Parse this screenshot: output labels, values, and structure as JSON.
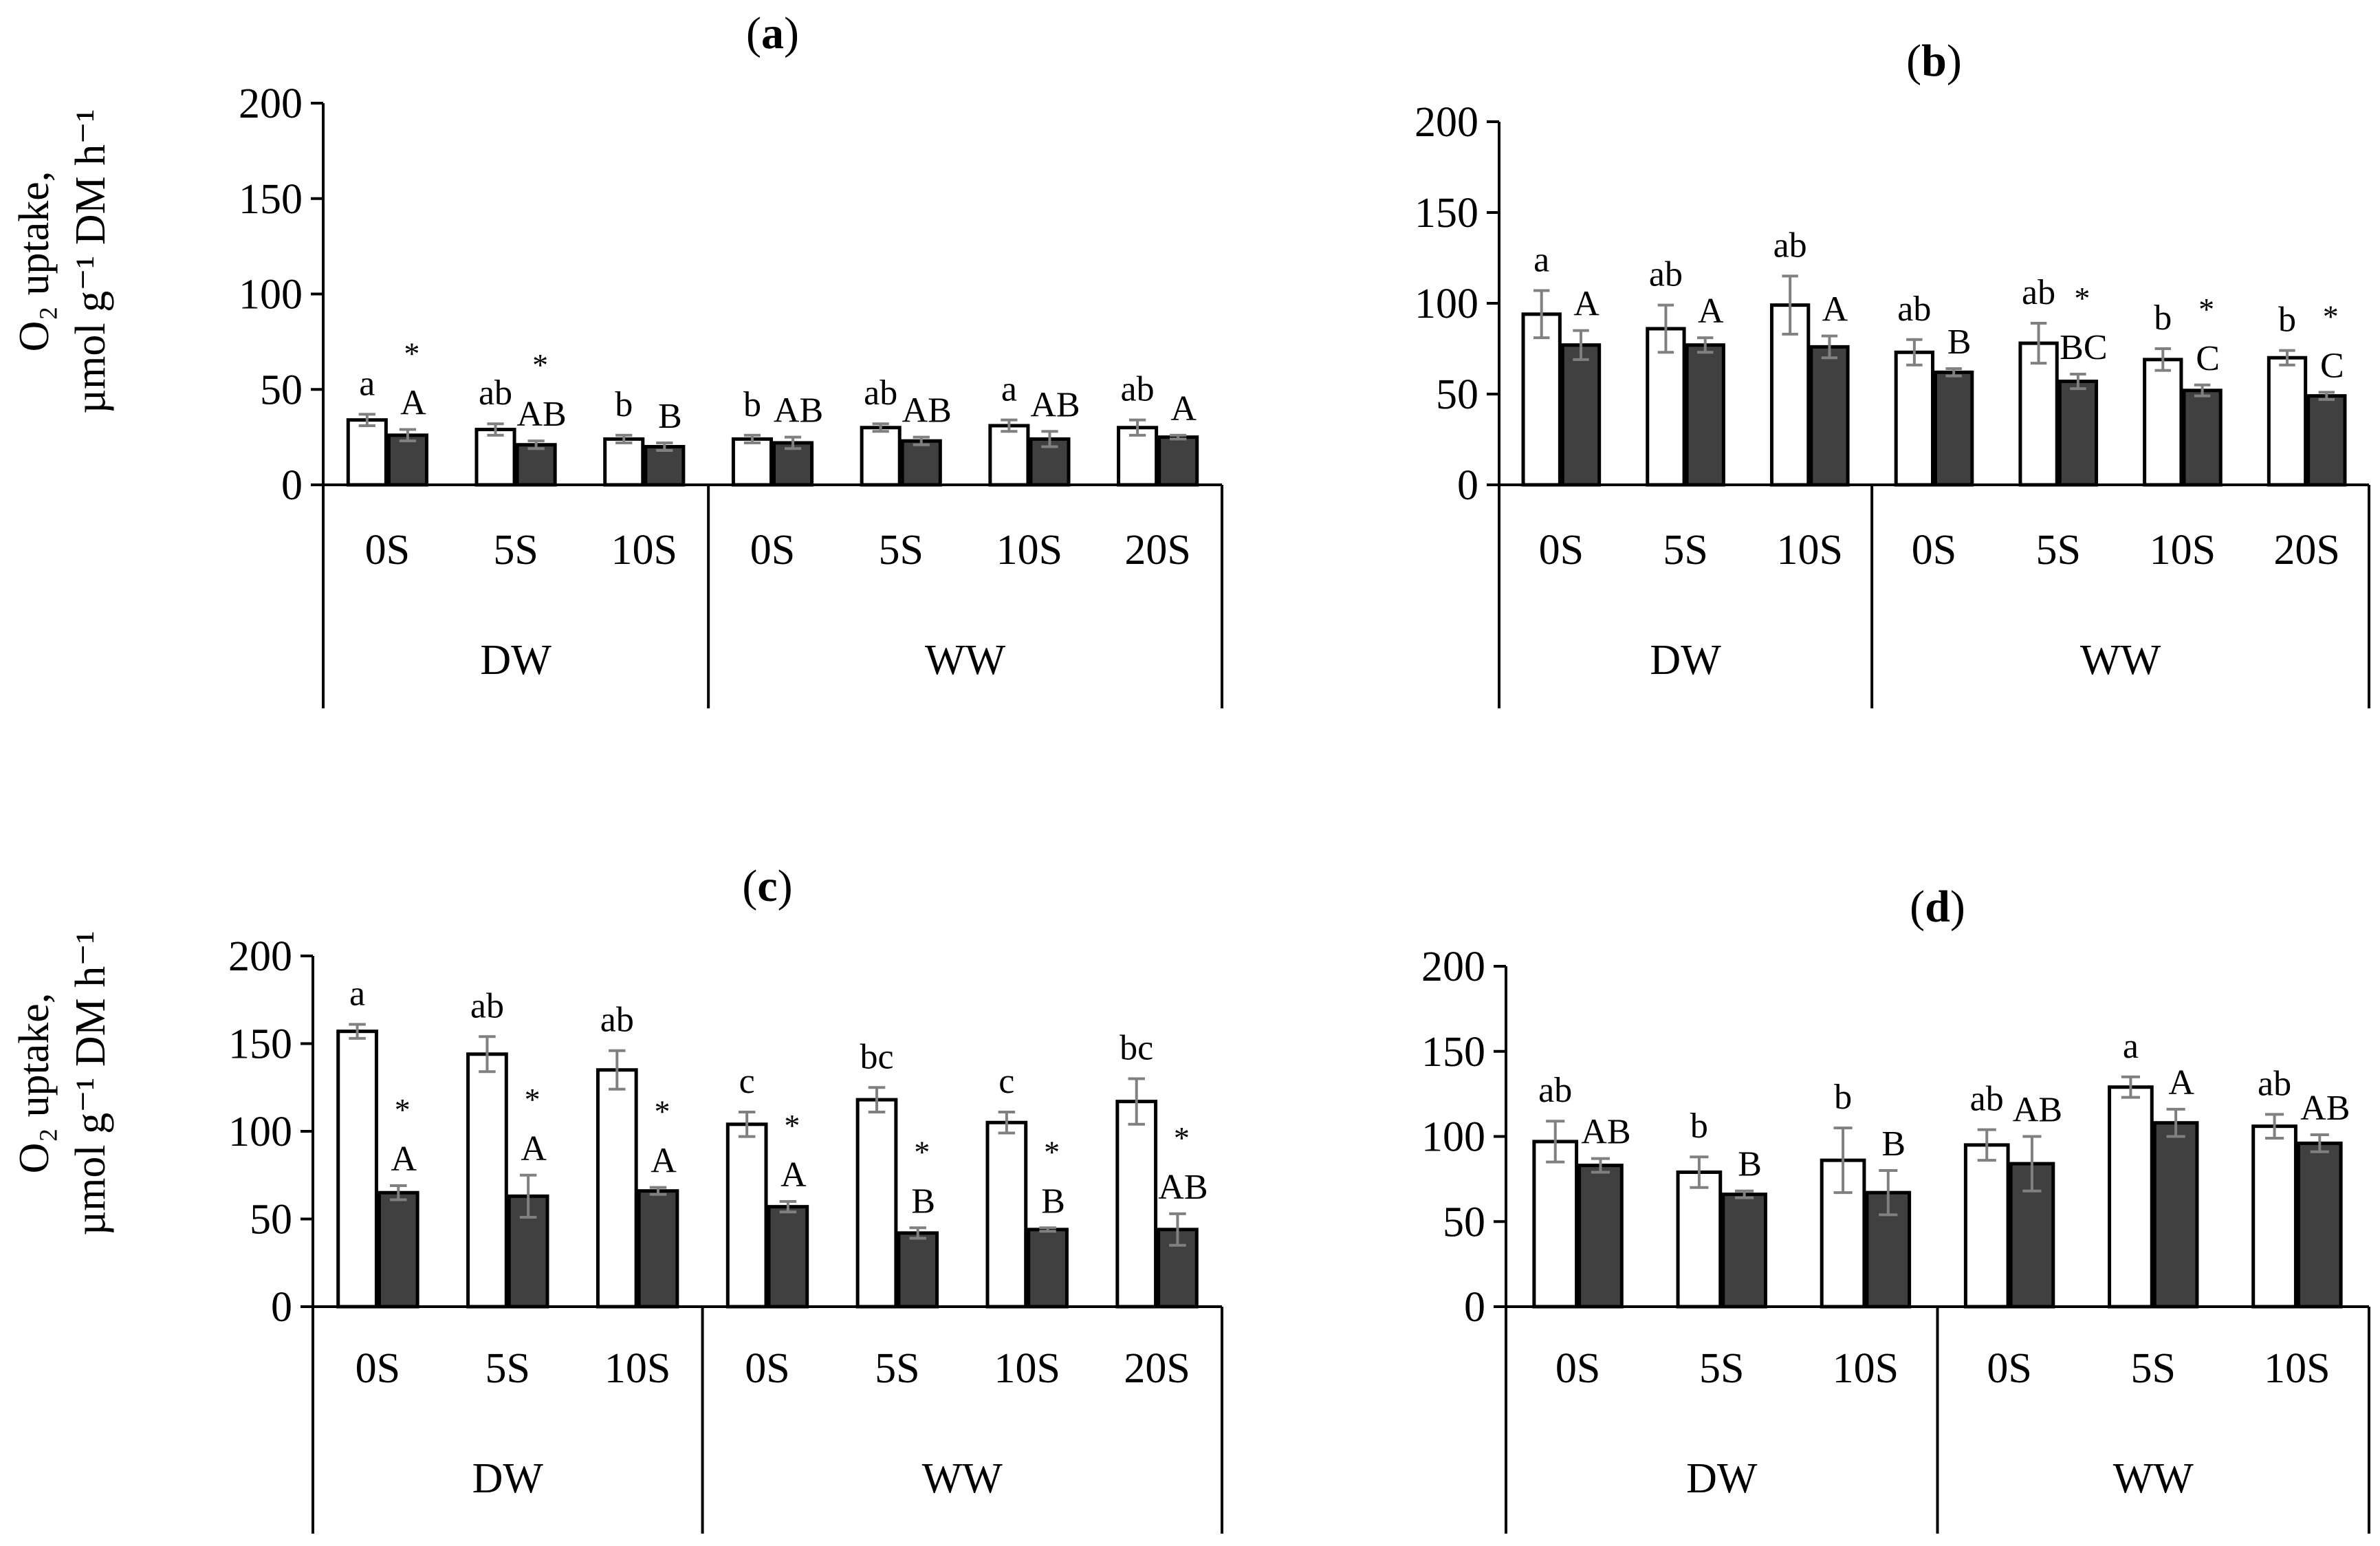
{
  "ylabel_line1": "O₂ uptake,",
  "ylabel_line2": "µmol g⁻¹ DM h⁻¹",
  "colors": {
    "open": "#ffffff",
    "filled": "#404040",
    "error": "#808080",
    "axis": "#000000"
  },
  "chart_data": [
    {
      "type": "bar",
      "panel": "(a)",
      "title": "(a)",
      "ylim": [
        0,
        200
      ],
      "yticks": [
        "0",
        "50",
        "100",
        "150",
        "200"
      ],
      "categories": [
        "0S",
        "5S",
        "10S",
        "0S",
        "5S",
        "10S",
        "20S"
      ],
      "groups": [
        {
          "label": "DW",
          "count": 3
        },
        {
          "label": "WW",
          "count": 4
        }
      ],
      "series": [
        {
          "style": "open",
          "values": [
            34,
            29,
            24,
            24,
            30,
            31,
            30
          ],
          "errors": [
            3,
            3,
            2,
            2,
            2,
            3,
            4
          ],
          "labels": [
            "a",
            "ab",
            "b",
            "b",
            "ab",
            "a",
            "ab"
          ]
        },
        {
          "style": "filled",
          "values": [
            26,
            21,
            20,
            22,
            23,
            24,
            25
          ],
          "errors": [
            3,
            2,
            2,
            3,
            2,
            4,
            1
          ],
          "labels": [
            "A",
            "AB",
            "B",
            "AB",
            "AB",
            "AB",
            "A"
          ]
        }
      ],
      "stars": [
        "*",
        "*",
        "",
        "",
        "",
        "",
        ""
      ]
    },
    {
      "type": "bar",
      "panel": "(b)",
      "title": "(b)",
      "ylim": [
        0,
        200
      ],
      "yticks": [
        "0",
        "50",
        "100",
        "150",
        "200"
      ],
      "categories": [
        "0S",
        "5S",
        "10S",
        "0S",
        "5S",
        "10S",
        "20S"
      ],
      "groups": [
        {
          "label": "DW",
          "count": 3
        },
        {
          "label": "WW",
          "count": 4
        }
      ],
      "series": [
        {
          "style": "open",
          "values": [
            94,
            86,
            99,
            73,
            78,
            69,
            70
          ],
          "errors": [
            13,
            13,
            16,
            7,
            11,
            6,
            4
          ],
          "labels": [
            "a",
            "ab",
            "ab",
            "ab",
            "ab",
            "b",
            "b"
          ]
        },
        {
          "style": "filled",
          "values": [
            77,
            77,
            76,
            62,
            57,
            52,
            49
          ],
          "errors": [
            8,
            4,
            6,
            2,
            4,
            3,
            2
          ],
          "labels": [
            "A",
            "A",
            "A",
            "B",
            "BC",
            "C",
            "C"
          ]
        }
      ],
      "stars": [
        "",
        "",
        "",
        "",
        "*",
        "*",
        "*"
      ]
    },
    {
      "type": "bar",
      "panel": "(c)",
      "title": "(c)",
      "ylim": [
        0,
        200
      ],
      "yticks": [
        "0",
        "50",
        "100",
        "150",
        "200"
      ],
      "categories": [
        "0S",
        "5S",
        "10S",
        "0S",
        "5S",
        "10S",
        "20S"
      ],
      "groups": [
        {
          "label": "DW",
          "count": 3
        },
        {
          "label": "WW",
          "count": 4
        }
      ],
      "series": [
        {
          "style": "open",
          "values": [
            157,
            144,
            135,
            104,
            118,
            105,
            117
          ],
          "errors": [
            4,
            10,
            11,
            7,
            7,
            6,
            13
          ],
          "labels": [
            "a",
            "ab",
            "ab",
            "c",
            "bc",
            "c",
            "bc"
          ]
        },
        {
          "style": "filled",
          "values": [
            65,
            63,
            66,
            57,
            42,
            44,
            44
          ],
          "errors": [
            4,
            12,
            2,
            3,
            3,
            1,
            9
          ],
          "labels": [
            "A",
            "A",
            "A",
            "A",
            "B",
            "B",
            "AB"
          ]
        }
      ],
      "stars": [
        "*",
        "*",
        "*",
        "*",
        "*",
        "*",
        "*"
      ]
    },
    {
      "type": "bar",
      "panel": "(d)",
      "title": "(d)",
      "ylim": [
        0,
        200
      ],
      "yticks": [
        "0",
        "50",
        "100",
        "150",
        "200"
      ],
      "categories": [
        "0S",
        "5S",
        "10S",
        "0S",
        "5S",
        "10S"
      ],
      "groups": [
        {
          "label": "DW",
          "count": 3
        },
        {
          "label": "WW",
          "count": 3
        }
      ],
      "series": [
        {
          "style": "open",
          "values": [
            97,
            79,
            86,
            95,
            129,
            106
          ],
          "errors": [
            12,
            9,
            19,
            9,
            6,
            7
          ],
          "labels": [
            "ab",
            "b",
            "b",
            "ab",
            "a",
            "ab"
          ]
        },
        {
          "style": "filled",
          "values": [
            83,
            66,
            67,
            84,
            108,
            96
          ],
          "errors": [
            4,
            2,
            13,
            16,
            8,
            5
          ],
          "labels": [
            "AB",
            "B",
            "B",
            "AB",
            "A",
            "AB"
          ]
        }
      ],
      "stars": [
        "",
        "",
        "",
        "",
        "",
        ""
      ]
    }
  ]
}
